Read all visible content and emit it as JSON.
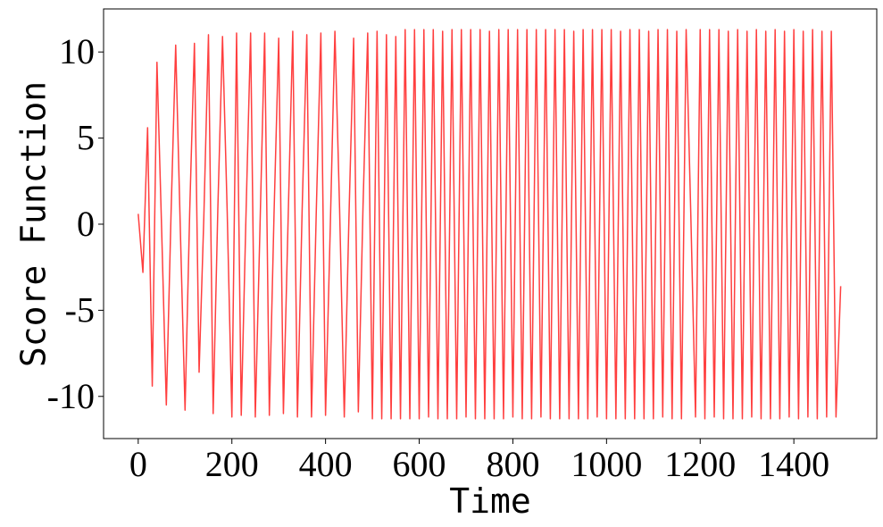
{
  "chart_data": {
    "type": "line",
    "xlabel": "Time",
    "ylabel": "Score Function",
    "color": "#ff2a2a",
    "xlim": [
      -74,
      1577
    ],
    "ylim": [
      -12.45,
      12.5
    ],
    "xticks": [
      0,
      200,
      400,
      600,
      800,
      1000,
      1200,
      1400
    ],
    "yticks": [
      -10,
      -5,
      0,
      5,
      10
    ],
    "x": [
      0,
      10,
      20,
      30,
      40,
      50,
      60,
      70,
      80,
      90,
      100,
      110,
      120,
      130,
      140,
      150,
      160,
      170,
      180,
      190,
      200,
      210,
      220,
      230,
      240,
      250,
      260,
      270,
      280,
      290,
      300,
      310,
      320,
      330,
      340,
      350,
      360,
      370,
      380,
      390,
      400,
      410,
      420,
      430,
      440,
      450,
      460,
      470,
      480,
      490,
      500,
      510,
      520,
      530,
      540,
      550,
      560,
      570,
      580,
      590,
      600,
      610,
      620,
      630,
      640,
      650,
      660,
      670,
      680,
      690,
      700,
      710,
      720,
      730,
      740,
      750,
      760,
      770,
      780,
      790,
      800,
      810,
      820,
      830,
      840,
      850,
      860,
      870,
      880,
      890,
      900,
      910,
      920,
      930,
      940,
      950,
      960,
      970,
      980,
      990,
      1000,
      1010,
      1020,
      1030,
      1040,
      1050,
      1060,
      1070,
      1080,
      1090,
      1100,
      1110,
      1120,
      1130,
      1140,
      1150,
      1160,
      1170,
      1180,
      1190,
      1200,
      1210,
      1220,
      1230,
      1240,
      1250,
      1260,
      1270,
      1280,
      1290,
      1300,
      1310,
      1320,
      1330,
      1340,
      1350,
      1360,
      1370,
      1380,
      1390,
      1400,
      1410,
      1420,
      1430,
      1440,
      1450,
      1460,
      1470,
      1480,
      1490,
      1500
    ],
    "values": [
      0.6,
      -2.8,
      5.6,
      -9.4,
      9.4,
      -0.3,
      -10.5,
      0.5,
      10.4,
      -0.4,
      -10.8,
      0.8,
      10.5,
      -8.6,
      0.3,
      11,
      -11,
      0.9,
      10.9,
      0.7,
      -11.2,
      11.1,
      -11.1,
      0.4,
      11.1,
      -11.2,
      -0.2,
      11.1,
      -11.1,
      0.6,
      10.8,
      -11,
      0.2,
      11.2,
      -11.2,
      0.8,
      11,
      -11.2,
      0.5,
      11.1,
      -11.1,
      -0.3,
      11.2,
      0.9,
      -11.2,
      0.4,
      10.8,
      -10.9,
      1,
      11.1,
      -11.3,
      11.2,
      -11.3,
      11,
      -11.3,
      10.9,
      -11.3,
      11.3,
      -11.3,
      11.3,
      -11.3,
      11.3,
      -11.2,
      11.3,
      -11.3,
      11.2,
      -11.3,
      11.3,
      -11.3,
      11.3,
      -11.2,
      11.3,
      -11.3,
      11.3,
      -11.3,
      11.2,
      -11.3,
      11.3,
      -11.3,
      11.3,
      -11.2,
      11.3,
      -11.3,
      11.3,
      -11.3,
      11.3,
      -11.2,
      11.3,
      -11.3,
      11.3,
      -11.3,
      11.3,
      -11.3,
      11.2,
      -11.3,
      11.3,
      -11.3,
      11.3,
      -11.2,
      11.3,
      -11.3,
      11.3,
      -11.3,
      11.2,
      -11.3,
      11.3,
      -11.3,
      11.3,
      -11.3,
      11.2,
      -11.3,
      11.3,
      -11.2,
      11.3,
      -11.3,
      11.2,
      -11.3,
      11.3,
      0.5,
      -11.2,
      11.3,
      -11.3,
      11.3,
      -11.2,
      11.3,
      -11.3,
      11.2,
      -11.3,
      11.3,
      -11.3,
      11.2,
      -11.2,
      11.3,
      -11.3,
      11.2,
      -11.3,
      11.3,
      -11.3,
      11.2,
      -11.2,
      11.3,
      -11.3,
      11.2,
      -11.2,
      11.3,
      -11.3,
      11.2,
      -11.2,
      11.2,
      -11.2,
      -3.6
    ]
  }
}
